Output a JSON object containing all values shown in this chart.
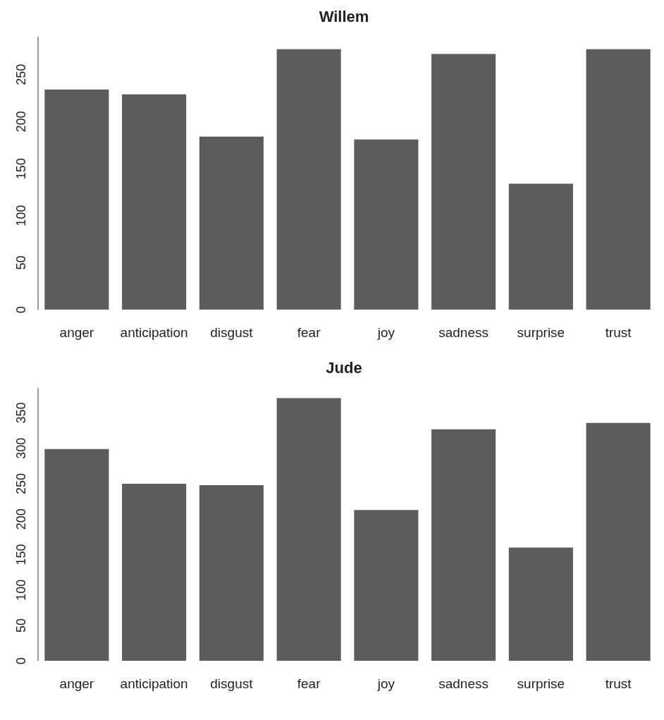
{
  "chart_data": [
    {
      "type": "bar",
      "title": "Willem",
      "categories": [
        "anger",
        "anticipation",
        "disgust",
        "fear",
        "joy",
        "sadness",
        "surprise",
        "trust"
      ],
      "values": [
        234,
        229,
        184,
        277,
        181,
        272,
        134,
        277
      ],
      "color": "#5c5c5e",
      "ylim": [
        0,
        290
      ],
      "yticks": [
        0,
        50,
        100,
        150,
        200,
        250
      ],
      "grid": false,
      "legend": false
    },
    {
      "type": "bar",
      "title": "Jude",
      "categories": [
        "anger",
        "anticipation",
        "disgust",
        "fear",
        "joy",
        "sadness",
        "surprise",
        "trust"
      ],
      "values": [
        299,
        250,
        248,
        371,
        213,
        327,
        160,
        336
      ],
      "color": "#5c5c5e",
      "ylim": [
        0,
        385
      ],
      "yticks": [
        0,
        50,
        100,
        150,
        200,
        250,
        300,
        350
      ],
      "grid": false,
      "legend": false
    }
  ]
}
